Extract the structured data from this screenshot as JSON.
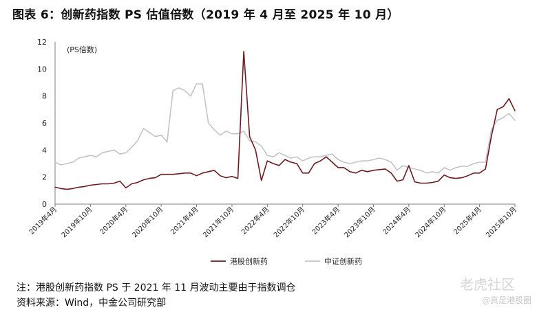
{
  "chart_data": {
    "type": "line",
    "title": "图表 6：创新药指数 PS 估值倍数（2019 年 4 月至 2025 年 10 月）",
    "ylabel": "(PS倍数)",
    "ylim": [
      0,
      12
    ],
    "yticks": [
      0,
      2,
      4,
      6,
      8,
      10,
      12
    ],
    "xticklabels": [
      "2019年4月",
      "2019年10月",
      "2020年4月",
      "2020年10月",
      "2021年4月",
      "2021年10月",
      "2022年4月",
      "2022年10月",
      "2023年4月",
      "2023年10月",
      "2024年4月",
      "2024年10月",
      "2025年4月",
      "2025年10月"
    ],
    "x": [
      "2019-04",
      "2019-05",
      "2019-06",
      "2019-07",
      "2019-08",
      "2019-09",
      "2019-10",
      "2019-11",
      "2019-12",
      "2020-01",
      "2020-02",
      "2020-03",
      "2020-04",
      "2020-05",
      "2020-06",
      "2020-07",
      "2020-08",
      "2020-09",
      "2020-10",
      "2020-11",
      "2020-12",
      "2021-01",
      "2021-02",
      "2021-03",
      "2021-04",
      "2021-05",
      "2021-06",
      "2021-07",
      "2021-08",
      "2021-09",
      "2021-10",
      "2021-11",
      "2021-12",
      "2022-01",
      "2022-02",
      "2022-03",
      "2022-04",
      "2022-05",
      "2022-06",
      "2022-07",
      "2022-08",
      "2022-09",
      "2022-10",
      "2022-11",
      "2022-12",
      "2023-01",
      "2023-02",
      "2023-03",
      "2023-04",
      "2023-05",
      "2023-06",
      "2023-07",
      "2023-08",
      "2023-09",
      "2023-10",
      "2023-11",
      "2023-12",
      "2024-01",
      "2024-02",
      "2024-03",
      "2024-04",
      "2024-05",
      "2024-06",
      "2024-07",
      "2024-08",
      "2024-09",
      "2024-10",
      "2024-11",
      "2024-12",
      "2025-01",
      "2025-02",
      "2025-03",
      "2025-04",
      "2025-05",
      "2025-06",
      "2025-07",
      "2025-08",
      "2025-09",
      "2025-10"
    ],
    "series": [
      {
        "name": "港股创新药",
        "color": "#6b1a1f",
        "values": [
          1.25,
          1.15,
          1.1,
          1.15,
          1.25,
          1.3,
          1.4,
          1.45,
          1.5,
          1.5,
          1.55,
          1.7,
          1.2,
          1.5,
          1.6,
          1.8,
          1.9,
          1.95,
          2.2,
          2.2,
          2.2,
          2.25,
          2.3,
          2.3,
          2.1,
          2.3,
          2.4,
          2.5,
          2.1,
          1.95,
          2.05,
          1.9,
          11.3,
          5.0,
          4.0,
          1.75,
          3.2,
          3.0,
          2.85,
          3.3,
          3.1,
          3.0,
          2.3,
          2.3,
          3.0,
          3.2,
          3.5,
          3.1,
          2.7,
          2.7,
          2.4,
          2.3,
          2.5,
          2.4,
          2.5,
          2.55,
          2.6,
          2.3,
          1.7,
          1.8,
          2.85,
          1.65,
          1.55,
          1.55,
          1.6,
          1.7,
          2.15,
          1.95,
          1.9,
          1.95,
          2.1,
          2.3,
          2.3,
          2.6,
          5.0,
          7.0,
          7.2,
          7.8,
          6.9
        ]
      },
      {
        "name": "中证创新药",
        "color": "#c4c4c4",
        "values": [
          3.1,
          2.9,
          3.0,
          3.1,
          3.4,
          3.5,
          3.6,
          3.5,
          3.8,
          3.9,
          4.0,
          3.7,
          3.8,
          4.2,
          4.7,
          5.6,
          5.3,
          5.0,
          5.1,
          4.6,
          8.4,
          8.6,
          8.4,
          8.0,
          8.9,
          8.9,
          6.0,
          5.5,
          5.1,
          5.4,
          5.2,
          5.2,
          5.4,
          4.7,
          4.6,
          4.3,
          3.6,
          3.5,
          3.8,
          3.6,
          3.4,
          3.5,
          3.2,
          3.4,
          3.5,
          3.5,
          3.6,
          3.7,
          3.3,
          3.1,
          3.0,
          3.1,
          3.2,
          3.2,
          3.3,
          3.4,
          3.3,
          3.1,
          2.5,
          2.85,
          2.7,
          2.6,
          2.5,
          2.3,
          2.4,
          2.3,
          2.7,
          2.5,
          2.7,
          2.8,
          2.8,
          3.0,
          3.1,
          3.1,
          5.5,
          6.2,
          6.4,
          6.7,
          6.2
        ]
      }
    ]
  },
  "notes": {
    "line1": "注：港股创新药指数 PS 于 2021 年 11 月波动主要由于指数调仓",
    "line2": "资料来源：Wind，中金公司研究部"
  },
  "watermark": {
    "brand": "老虎社区",
    "handle": "@真是港股圈"
  }
}
